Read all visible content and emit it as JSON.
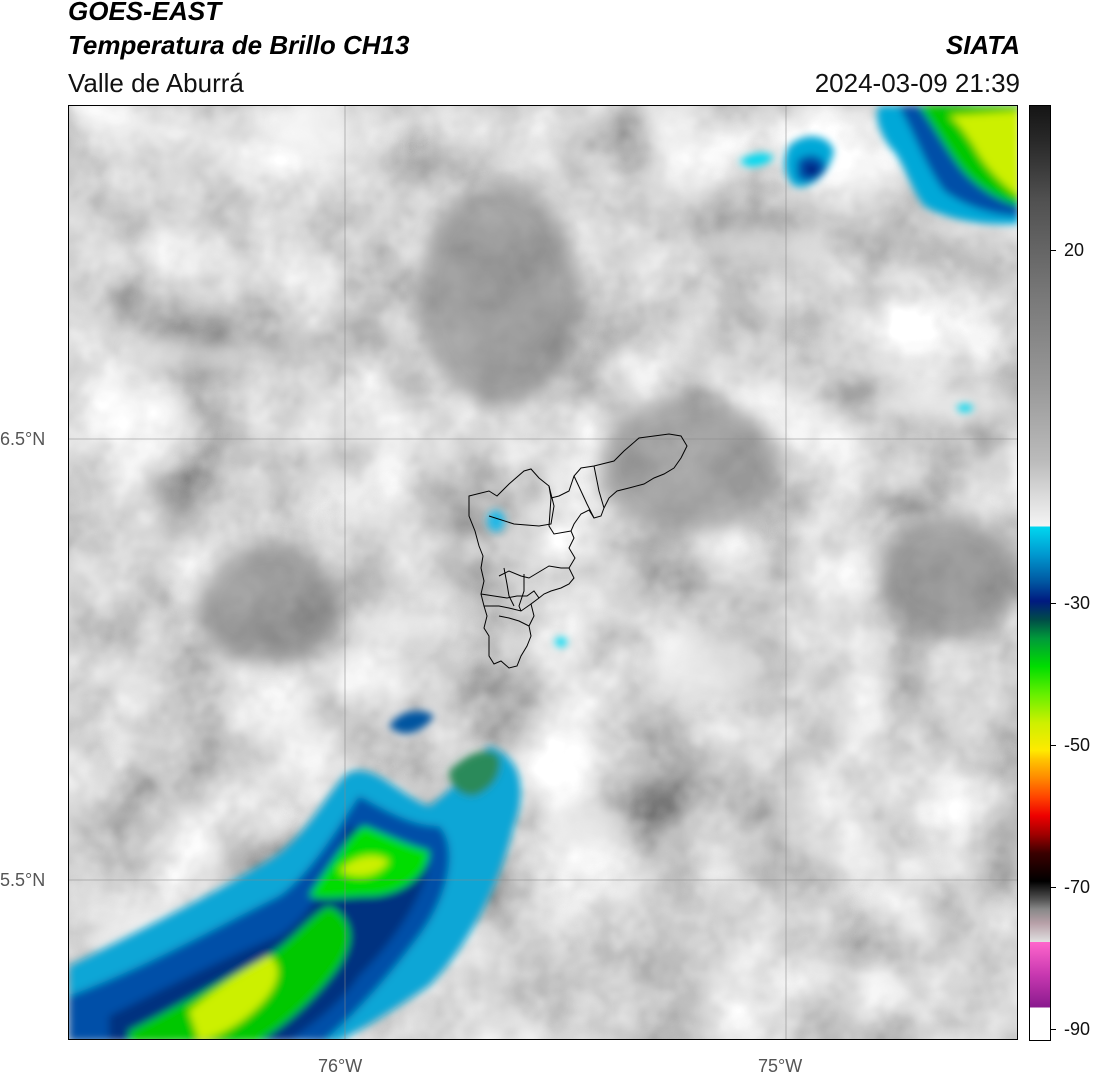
{
  "header": {
    "title_line1": "GOES-EAST",
    "title_line2": "Temperatura de Brillo CH13",
    "subtitle": "Valle de Aburrá",
    "brand": "SIATA",
    "timestamp": "2024-03-09 21:39"
  },
  "axes": {
    "lat_labels": [
      "6.5°N",
      "5.5°N"
    ],
    "lon_labels": [
      "76°W",
      "75°W"
    ],
    "gridlines": true
  },
  "colorbar": {
    "tick_labels": [
      "20",
      "-30",
      "-50",
      "-70",
      "-90"
    ],
    "colors": {
      "warm": "#333333",
      "cold_cyan": "#00d8f0",
      "cold_blue": "#001a80",
      "green": "#00dd00",
      "yellow": "#ffea00",
      "red": "#ee0000",
      "magenta": "#c838b0"
    }
  },
  "map": {
    "overlay": "municipal-boundaries-outline"
  }
}
